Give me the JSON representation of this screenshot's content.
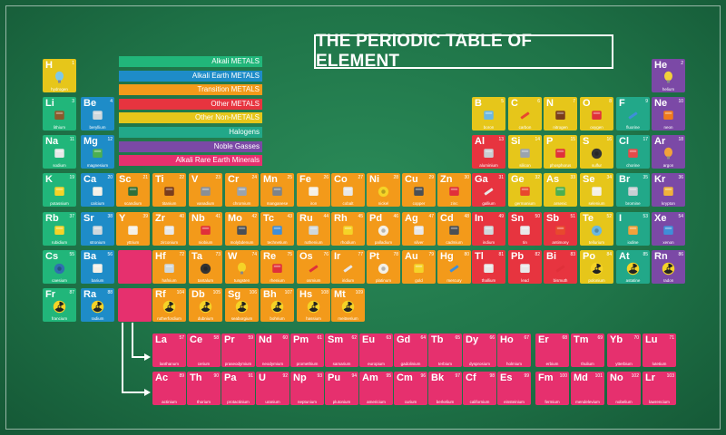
{
  "title": "THE PERIODIC TABLE OF ELEMENT",
  "legend": [
    {
      "label": "Alkali METALS",
      "color": "#21b67a"
    },
    {
      "label": "Alkali Earth METALS",
      "color": "#1e8cc8"
    },
    {
      "label": "Transition METALS",
      "color": "#f39a1a"
    },
    {
      "label": "Other METALS",
      "color": "#e7343f"
    },
    {
      "label": "Other Non-METALS",
      "color": "#e6c61a"
    },
    {
      "label": "Halogens",
      "color": "#22a889"
    },
    {
      "label": "Noble Gasses",
      "color": "#7b49a6"
    },
    {
      "label": "Alkali Rare Earth Minerals",
      "color": "#e6306e"
    }
  ],
  "elements": [
    {
      "s": "H",
      "n": 1,
      "name": "hydrogen",
      "c": "#e6c61a",
      "ico": "balloon-icon",
      "ic": "#7ec8e8"
    },
    {
      "s": "He",
      "n": 2,
      "name": "helium",
      "c": "#7b49a6",
      "ico": "balloon-icon",
      "ic": "#f2d13a"
    },
    {
      "s": "Li",
      "n": 3,
      "name": "lithium",
      "c": "#21b67a",
      "ico": "battery-icon",
      "ic": "#8a5a2b"
    },
    {
      "s": "Be",
      "n": 4,
      "name": "beryllium",
      "c": "#1e8cc8",
      "ico": "satellite-icon",
      "ic": "#cfd8dc"
    },
    {
      "s": "B",
      "n": 5,
      "name": "boron",
      "c": "#e6c61a",
      "ico": "measuring-cup-icon",
      "ic": "#6bb7e0"
    },
    {
      "s": "C",
      "n": 6,
      "name": "carbon",
      "c": "#e6c61a",
      "ico": "pencil-icon",
      "ic": "#e8492d"
    },
    {
      "s": "N",
      "n": 7,
      "name": "nitrogen",
      "c": "#e6c61a",
      "ico": "chocolate-icon",
      "ic": "#7a3d1c"
    },
    {
      "s": "O",
      "n": 8,
      "name": "oxygen",
      "c": "#e6c61a",
      "ico": "fire-extinguisher-icon",
      "ic": "#e0303a"
    },
    {
      "s": "F",
      "n": 9,
      "name": "fluorine",
      "c": "#22a889",
      "ico": "toothbrush-icon",
      "ic": "#3f8ed8"
    },
    {
      "s": "Ne",
      "n": 10,
      "name": "neon",
      "c": "#7b49a6",
      "ico": "neon-sign-icon",
      "ic": "#f07a1a"
    },
    {
      "s": "Na",
      "n": 11,
      "name": "sodium",
      "c": "#21b67a",
      "ico": "salt-shaker-icon",
      "ic": "#e8e8e8"
    },
    {
      "s": "Mg",
      "n": 12,
      "name": "magnesium",
      "c": "#1e8cc8",
      "ico": "plant-icon",
      "ic": "#4caf50"
    },
    {
      "s": "Al",
      "n": 13,
      "name": "aluminium",
      "c": "#e7343f",
      "ico": "can-icon",
      "ic": "#c9ced3"
    },
    {
      "s": "Si",
      "n": 14,
      "name": "silicon",
      "c": "#e6c61a",
      "ico": "chip-icon",
      "ic": "#9aa3ad"
    },
    {
      "s": "P",
      "n": 15,
      "name": "phosphorus",
      "c": "#e6c61a",
      "ico": "matches-icon",
      "ic": "#e0303a"
    },
    {
      "s": "S",
      "n": 16,
      "name": "sulfur",
      "c": "#e6c61a",
      "ico": "tire-icon",
      "ic": "#333333"
    },
    {
      "s": "Cl",
      "n": 17,
      "name": "chorine",
      "c": "#22a889",
      "ico": "bleach-bottle-icon",
      "ic": "#e54a4a"
    },
    {
      "s": "Ar",
      "n": 18,
      "name": "argon",
      "c": "#7b49a6",
      "ico": "bulb-icon",
      "ic": "#f2a33a"
    },
    {
      "s": "K",
      "n": 19,
      "name": "potassium",
      "c": "#21b67a",
      "ico": "banana-icon",
      "ic": "#f5d327"
    },
    {
      "s": "Ca",
      "n": 20,
      "name": "calcium",
      "c": "#1e8cc8",
      "ico": "bone-icon",
      "ic": "#f4f0e6"
    },
    {
      "s": "Sc",
      "n": 21,
      "name": "scandium",
      "c": "#f39a1a",
      "ico": "bicycle-icon",
      "ic": "#2f6f3a"
    },
    {
      "s": "Ti",
      "n": 22,
      "name": "titanium",
      "c": "#f39a1a",
      "ico": "racket-icon",
      "ic": "#7a3d1c"
    },
    {
      "s": "V",
      "n": 23,
      "name": "vanadium",
      "c": "#f39a1a",
      "ico": "tools-icon",
      "ic": "#8a8f96"
    },
    {
      "s": "Cr",
      "n": 24,
      "name": "chromium",
      "c": "#f39a1a",
      "ico": "wrench-icon",
      "ic": "#9aa3ad"
    },
    {
      "s": "Mn",
      "n": 25,
      "name": "manganese",
      "c": "#f39a1a",
      "ico": "steel-icon",
      "ic": "#7d838a"
    },
    {
      "s": "Fe",
      "n": 26,
      "name": "iron",
      "c": "#f39a1a",
      "ico": "fence-icon",
      "ic": "#f4f0e6"
    },
    {
      "s": "Co",
      "n": 27,
      "name": "cobalt",
      "c": "#f39a1a",
      "ico": "magnet-icon",
      "ic": "#e8e8e8"
    },
    {
      "s": "Ni",
      "n": 28,
      "name": "nickel",
      "c": "#f39a1a",
      "ico": "coin-icon",
      "ic": "#f5d327"
    },
    {
      "s": "Cu",
      "n": 29,
      "name": "copper",
      "c": "#f39a1a",
      "ico": "pan-icon",
      "ic": "#4a4f55"
    },
    {
      "s": "Zn",
      "n": 30,
      "name": "zinc",
      "c": "#f39a1a",
      "ico": "paint-can-icon",
      "ic": "#e0303a"
    },
    {
      "s": "Ga",
      "n": 31,
      "name": "gallium",
      "c": "#e7343f",
      "ico": "thermometer-icon",
      "ic": "#e8e8e8"
    },
    {
      "s": "Ge",
      "n": 32,
      "name": "germanium",
      "c": "#e6c61a",
      "ico": "lens-icon",
      "ic": "#e8492d"
    },
    {
      "s": "As",
      "n": 33,
      "name": "arsenic",
      "c": "#e6c61a",
      "ico": "poison-bottle-icon",
      "ic": "#4caf50"
    },
    {
      "s": "Se",
      "n": 34,
      "name": "selenium",
      "c": "#e6c61a",
      "ico": "glass-icon",
      "ic": "#f4f0e6"
    },
    {
      "s": "Br",
      "n": 35,
      "name": "bromine",
      "c": "#22a889",
      "ico": "flask-icon",
      "ic": "#c9ced3"
    },
    {
      "s": "Kr",
      "n": 36,
      "name": "krypton",
      "c": "#7b49a6",
      "ico": "superhero-icon",
      "ic": "#f0b23a"
    },
    {
      "s": "Rb",
      "n": 37,
      "name": "rubidium",
      "c": "#21b67a",
      "ico": "firework-icon",
      "ic": "#f5d327"
    },
    {
      "s": "Sr",
      "n": 38,
      "name": "stronium",
      "c": "#1e8cc8",
      "ico": "monitor-icon",
      "ic": "#cfd8dc"
    },
    {
      "s": "Y",
      "n": 39,
      "name": "yttrium",
      "c": "#f39a1a",
      "ico": "laser-icon",
      "ic": "#f4f0e6"
    },
    {
      "s": "Zr",
      "n": 40,
      "name": "zirconium",
      "c": "#f39a1a",
      "ico": "diamond-ring-icon",
      "ic": "#e8e8e8"
    },
    {
      "s": "Nb",
      "n": 41,
      "name": "niobium",
      "c": "#f39a1a",
      "ico": "glasses-icon",
      "ic": "#e0303a"
    },
    {
      "s": "Mo",
      "n": 42,
      "name": "molybdenum",
      "c": "#f39a1a",
      "ico": "drill-icon",
      "ic": "#4a4f55"
    },
    {
      "s": "Tc",
      "n": 43,
      "name": "technetium",
      "c": "#f39a1a",
      "ico": "xray-icon",
      "ic": "#3f8ed8"
    },
    {
      "s": "Ru",
      "n": 44,
      "name": "ruthenium",
      "c": "#f39a1a",
      "ico": "circuit-icon",
      "ic": "#cfd8dc"
    },
    {
      "s": "Rh",
      "n": 45,
      "name": "rhodium",
      "c": "#f39a1a",
      "ico": "headlight-icon",
      "ic": "#f5d327"
    },
    {
      "s": "Pd",
      "n": 46,
      "name": "palladium",
      "c": "#f39a1a",
      "ico": "ring-icon",
      "ic": "#f4f0e6"
    },
    {
      "s": "Ag",
      "n": 47,
      "name": "silver",
      "c": "#f39a1a",
      "ico": "silverware-icon",
      "ic": "#e8e8e8"
    },
    {
      "s": "Cd",
      "n": 48,
      "name": "cadmium",
      "c": "#f39a1a",
      "ico": "battery-icon",
      "ic": "#4a4f55"
    },
    {
      "s": "In",
      "n": 49,
      "name": "indium",
      "c": "#e7343f",
      "ico": "screen-icon",
      "ic": "#cfd8dc"
    },
    {
      "s": "Sn",
      "n": 50,
      "name": "tin",
      "c": "#e7343f",
      "ico": "tin-can-icon",
      "ic": "#e8e8e8"
    },
    {
      "s": "Sb",
      "n": 51,
      "name": "antimony",
      "c": "#e7343f",
      "ico": "flame-retardant-icon",
      "ic": "#e8492d"
    },
    {
      "s": "Te",
      "n": 52,
      "name": "tellurium",
      "c": "#e6c61a",
      "ico": "disc-icon",
      "ic": "#6bb7e0"
    },
    {
      "s": "I",
      "n": 53,
      "name": "iodine",
      "c": "#22a889",
      "ico": "disinfectant-icon",
      "ic": "#f0a13a"
    },
    {
      "s": "Xe",
      "n": 54,
      "name": "xenon",
      "c": "#7b49a6",
      "ico": "lamp-icon",
      "ic": "#3f8ed8"
    },
    {
      "s": "Cs",
      "n": 55,
      "name": "caesium",
      "c": "#21b67a",
      "ico": "clock-icon",
      "ic": "#2f6faf"
    },
    {
      "s": "Ba",
      "n": 56,
      "name": "barium",
      "c": "#1e8cc8",
      "ico": "teapot-icon",
      "ic": "#f4f0e6"
    },
    {
      "s": "Hf",
      "n": 72,
      "name": "hafnium",
      "c": "#f39a1a",
      "ico": "nuclear-rod-icon",
      "ic": "#cfd8dc"
    },
    {
      "s": "Ta",
      "n": 73,
      "name": "tantalum",
      "c": "#f39a1a",
      "ico": "speaker-icon",
      "ic": "#333333"
    },
    {
      "s": "W",
      "n": 74,
      "name": "tungsten",
      "c": "#f39a1a",
      "ico": "bulb-icon",
      "ic": "#f5d327"
    },
    {
      "s": "Re",
      "n": 75,
      "name": "rhenium",
      "c": "#f39a1a",
      "ico": "rocket-engine-icon",
      "ic": "#e0303a"
    },
    {
      "s": "Os",
      "n": 76,
      "name": "osmium",
      "c": "#f39a1a",
      "ico": "fountain-pen-icon",
      "ic": "#e0303a"
    },
    {
      "s": "Ir",
      "n": 77,
      "name": "iridium",
      "c": "#f39a1a",
      "ico": "spark-plug-icon",
      "ic": "#e8e8e8"
    },
    {
      "s": "Pt",
      "n": 78,
      "name": "platinum",
      "c": "#f39a1a",
      "ico": "ring-icon",
      "ic": "#f4f0e6"
    },
    {
      "s": "Au",
      "n": 79,
      "name": "gold",
      "c": "#f39a1a",
      "ico": "gold-nugget-icon",
      "ic": "#f5d327"
    },
    {
      "s": "Hg",
      "n": 80,
      "name": "mercury",
      "c": "#f39a1a",
      "ico": "thermometer-icon",
      "ic": "#3f8ed8"
    },
    {
      "s": "Tl",
      "n": 81,
      "name": "thallium",
      "c": "#e7343f",
      "ico": "poison-icon",
      "ic": "#e8e8e8"
    },
    {
      "s": "Pb",
      "n": 82,
      "name": "lead",
      "c": "#e7343f",
      "ico": "weight-icon",
      "ic": "#e8e8e8"
    },
    {
      "s": "Bi",
      "n": 83,
      "name": "bismuth",
      "c": "#e7343f",
      "ico": "lipstick-icon",
      "ic": "#e0303a"
    },
    {
      "s": "Po",
      "n": 84,
      "name": "polonium",
      "c": "#e6c61a",
      "ico": "radiation-icon",
      "ic": "#f5d327"
    },
    {
      "s": "At",
      "n": 85,
      "name": "astatine",
      "c": "#22a889",
      "ico": "radiation-icon",
      "ic": "#f5d327"
    },
    {
      "s": "Rn",
      "n": 86,
      "name": "radon",
      "c": "#7b49a6",
      "ico": "radiation-icon",
      "ic": "#f5d327"
    },
    {
      "s": "Fr",
      "n": 87,
      "name": "francium",
      "c": "#21b67a",
      "ico": "radiation-icon",
      "ic": "#f5d327"
    },
    {
      "s": "Ra",
      "n": 88,
      "name": "radium",
      "c": "#1e8cc8",
      "ico": "radiation-icon",
      "ic": "#f5d327"
    },
    {
      "s": "Rf",
      "n": 104,
      "name": "rutherfordium",
      "c": "#f39a1a",
      "ico": "radiation-icon",
      "ic": "#f5d327"
    },
    {
      "s": "Db",
      "n": 105,
      "name": "dubnium",
      "c": "#f39a1a",
      "ico": "radiation-icon",
      "ic": "#f5d327"
    },
    {
      "s": "Sg",
      "n": 106,
      "name": "seaborgium",
      "c": "#f39a1a",
      "ico": "radiation-icon",
      "ic": "#f5d327"
    },
    {
      "s": "Bh",
      "n": 107,
      "name": "bohrium",
      "c": "#f39a1a",
      "ico": "radiation-icon",
      "ic": "#f5d327"
    },
    {
      "s": "Hs",
      "n": 108,
      "name": "hassium",
      "c": "#f39a1a",
      "ico": "radiation-icon",
      "ic": "#f5d327"
    },
    {
      "s": "Mt",
      "n": 109,
      "name": "meitnerium",
      "c": "#f39a1a",
      "ico": "radiation-icon",
      "ic": "#f5d327"
    },
    {
      "s": "La",
      "n": 57,
      "name": "lanthanum",
      "c": "#e6306e"
    },
    {
      "s": "Ce",
      "n": 58,
      "name": "cerium",
      "c": "#e6306e"
    },
    {
      "s": "Pr",
      "n": 59,
      "name": "praseodymium",
      "c": "#e6306e"
    },
    {
      "s": "Nd",
      "n": 60,
      "name": "neodymium",
      "c": "#e6306e"
    },
    {
      "s": "Pm",
      "n": 61,
      "name": "promethium",
      "c": "#e6306e"
    },
    {
      "s": "Sm",
      "n": 62,
      "name": "samarium",
      "c": "#e6306e"
    },
    {
      "s": "Eu",
      "n": 63,
      "name": "europium",
      "c": "#e6306e"
    },
    {
      "s": "Gd",
      "n": 64,
      "name": "gadolinium",
      "c": "#e6306e"
    },
    {
      "s": "Tb",
      "n": 65,
      "name": "terbium",
      "c": "#e6306e"
    },
    {
      "s": "Dy",
      "n": 66,
      "name": "dysprosium",
      "c": "#e6306e"
    },
    {
      "s": "Ho",
      "n": 67,
      "name": "holmium",
      "c": "#e6306e"
    },
    {
      "s": "Er",
      "n": 68,
      "name": "erbium",
      "c": "#e6306e"
    },
    {
      "s": "Tm",
      "n": 69,
      "name": "thulium",
      "c": "#e6306e"
    },
    {
      "s": "Yb",
      "n": 70,
      "name": "ytterbium",
      "c": "#e6306e"
    },
    {
      "s": "Lu",
      "n": 71,
      "name": "lutetium",
      "c": "#e6306e"
    },
    {
      "s": "Ac",
      "n": 89,
      "name": "actinium",
      "c": "#e6306e"
    },
    {
      "s": "Th",
      "n": 90,
      "name": "thorium",
      "c": "#e6306e"
    },
    {
      "s": "Pa",
      "n": 91,
      "name": "protactinium",
      "c": "#e6306e"
    },
    {
      "s": "U",
      "n": 92,
      "name": "uranium",
      "c": "#e6306e"
    },
    {
      "s": "Np",
      "n": 93,
      "name": "neptunium",
      "c": "#e6306e"
    },
    {
      "s": "Pu",
      "n": 94,
      "name": "plutonium",
      "c": "#e6306e"
    },
    {
      "s": "Am",
      "n": 95,
      "name": "americium",
      "c": "#e6306e"
    },
    {
      "s": "Cm",
      "n": 96,
      "name": "curium",
      "c": "#e6306e"
    },
    {
      "s": "Bk",
      "n": 97,
      "name": "berkelium",
      "c": "#e6306e"
    },
    {
      "s": "Cf",
      "n": 98,
      "name": "californium",
      "c": "#e6306e"
    },
    {
      "s": "Es",
      "n": 99,
      "name": "einsteinium",
      "c": "#e6306e"
    },
    {
      "s": "Fm",
      "n": 100,
      "name": "fermium",
      "c": "#e6306e"
    },
    {
      "s": "Md",
      "n": 101,
      "name": "mendelevium",
      "c": "#e6306e"
    },
    {
      "s": "No",
      "n": 102,
      "name": "nobelium",
      "c": "#e6306e"
    },
    {
      "s": "Lr",
      "n": 103,
      "name": "lawrencium",
      "c": "#e6306e"
    }
  ],
  "placeholder_color": "#e6306e",
  "connector_color": "#ffffff"
}
